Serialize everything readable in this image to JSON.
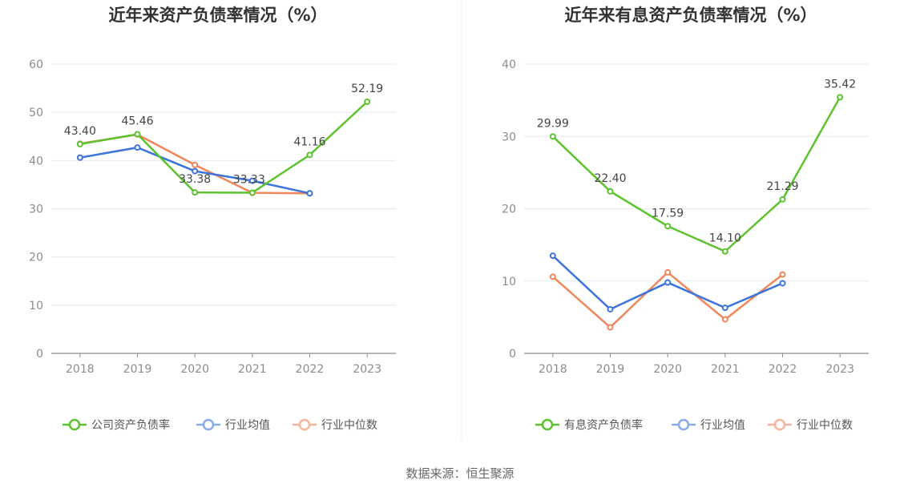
{
  "source_text": "数据来源：恒生聚源",
  "chart_data": [
    {
      "type": "line",
      "title": "近年来资产负债率情况（%）",
      "categories": [
        "2018",
        "2019",
        "2020",
        "2021",
        "2022",
        "2023"
      ],
      "ylim": [
        0,
        60
      ],
      "yticks": [
        0,
        10,
        20,
        30,
        40,
        50,
        60
      ],
      "grid": true,
      "legend_position": "bottom",
      "series": [
        {
          "name": "公司资产负债率",
          "color": "#5cc32e",
          "values": [
            43.4,
            45.46,
            33.38,
            33.33,
            41.16,
            52.19
          ],
          "labels": [
            "43.40",
            "45.46",
            "33.38",
            "33.33",
            "41.16",
            "52.19"
          ]
        },
        {
          "name": "行业均值",
          "color": "#3d74db",
          "values": [
            40.6,
            42.7,
            37.8,
            35.8,
            33.2,
            null
          ]
        },
        {
          "name": "行业中位数",
          "color": "#f0875a",
          "values": [
            43.5,
            45.4,
            39.1,
            33.3,
            33.2,
            null
          ]
        }
      ]
    },
    {
      "type": "line",
      "title": "近年来有息资产负债率情况（%）",
      "categories": [
        "2018",
        "2019",
        "2020",
        "2021",
        "2022",
        "2023"
      ],
      "ylim": [
        0,
        40
      ],
      "yticks": [
        0,
        10,
        20,
        30,
        40
      ],
      "grid": true,
      "legend_position": "bottom",
      "series": [
        {
          "name": "有息资产负债率",
          "color": "#5cc32e",
          "values": [
            29.99,
            22.4,
            17.59,
            14.1,
            21.29,
            35.42
          ],
          "labels": [
            "29.99",
            "22.40",
            "17.59",
            "14.10",
            "21.29",
            "35.42"
          ]
        },
        {
          "name": "行业均值",
          "color": "#3d74db",
          "values": [
            13.5,
            6.1,
            9.8,
            6.3,
            9.7,
            null
          ]
        },
        {
          "name": "行业中位数",
          "color": "#f0875a",
          "values": [
            10.6,
            3.6,
            11.2,
            4.7,
            10.9,
            null
          ]
        }
      ]
    }
  ]
}
